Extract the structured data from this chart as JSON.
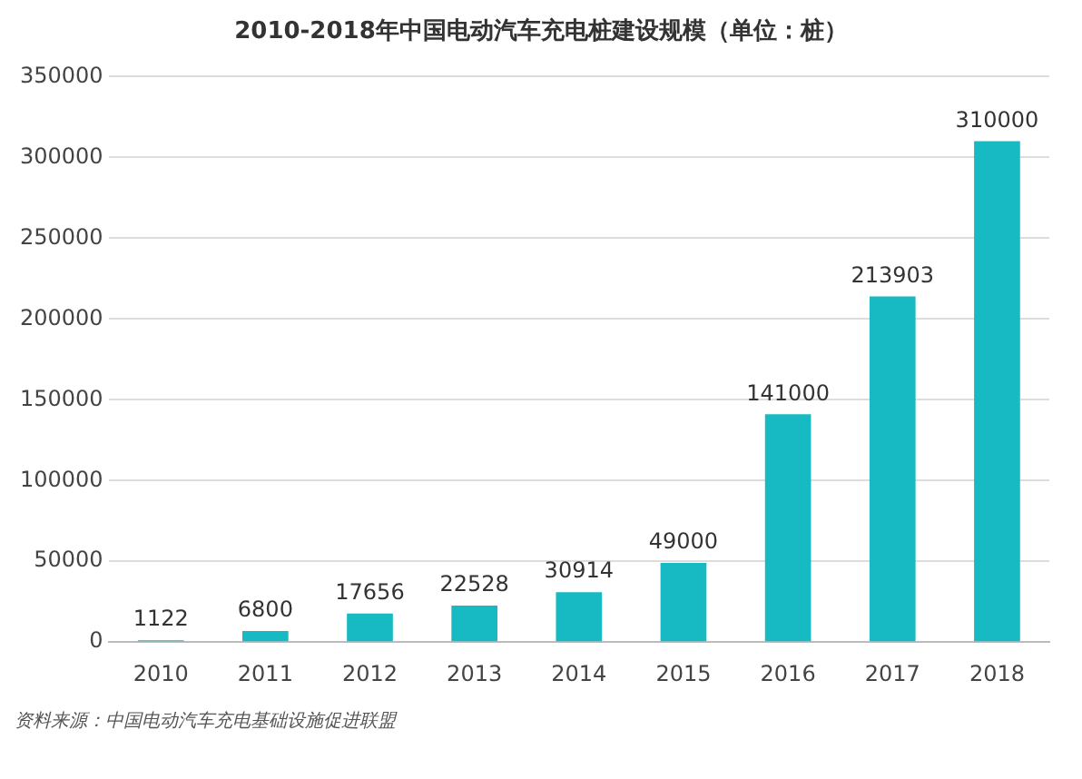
{
  "chart_data": {
    "type": "bar",
    "title": "2010-2018年中国电动汽车充电桩建设规模（单位：桩）",
    "categories": [
      "2010",
      "2011",
      "2012",
      "2013",
      "2014",
      "2015",
      "2016",
      "2017",
      "2018"
    ],
    "values": [
      1122,
      6800,
      17656,
      22528,
      30914,
      49000,
      141000,
      213903,
      310000
    ],
    "color": "#17b9c2",
    "ylim": [
      0,
      350000
    ],
    "yticks": [
      0,
      50000,
      100000,
      150000,
      200000,
      250000,
      300000,
      350000
    ],
    "grid": "y",
    "data_labels": true,
    "legend": false,
    "annotations": [
      "资料来源：中国电动汽车充电基础设施促进联盟"
    ]
  }
}
